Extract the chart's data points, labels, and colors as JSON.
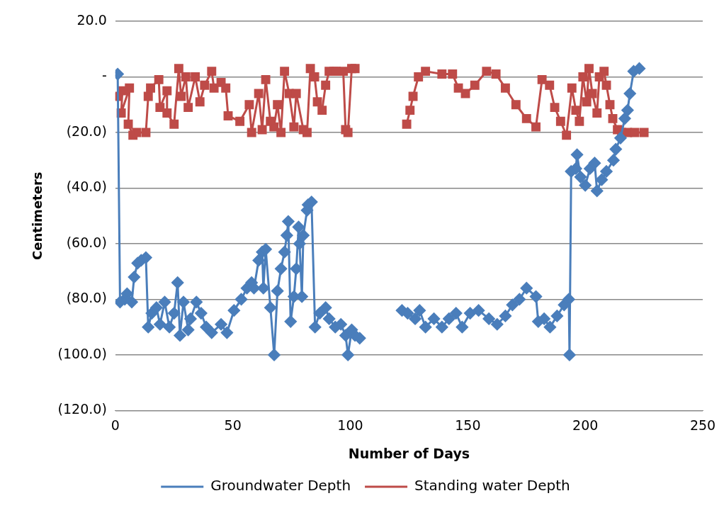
{
  "chart_data": {
    "type": "line",
    "xlabel": "Number of Days",
    "ylabel": "Centimeters",
    "xlim": [
      0,
      250
    ],
    "xticks": [
      0,
      50,
      100,
      150,
      200,
      250
    ],
    "ylim": [
      -120,
      20
    ],
    "yticks": [
      {
        "value": 20,
        "label": "20.0"
      },
      {
        "value": 0,
        "label": "-"
      },
      {
        "value": -20,
        "label": "(20.0)"
      },
      {
        "value": -40,
        "label": "(40.0)"
      },
      {
        "value": -60,
        "label": "(60.0)"
      },
      {
        "value": -80,
        "label": "(80.0)"
      },
      {
        "value": -100,
        "label": "(100.0)"
      },
      {
        "value": -120,
        "label": "(120.0)"
      }
    ],
    "grid": "y",
    "legend": "bottom",
    "line_style": "solid",
    "series": [
      {
        "name": "Groundwater Depth",
        "color": "#4a7ebb",
        "marker": "diamond",
        "x": [
          1,
          2,
          4,
          5,
          7,
          8,
          9.5,
          11,
          13,
          14,
          15.5,
          17.5,
          19,
          21,
          23,
          25,
          26.5,
          27.5,
          29,
          31,
          32,
          34.5,
          36.5,
          38.7,
          41,
          45,
          47.5,
          50.5,
          53.6,
          56,
          58,
          59,
          61,
          62.5,
          63,
          64,
          66,
          67.6,
          69,
          70.5,
          72,
          73,
          73.6,
          74.6,
          76,
          77,
          78,
          78.4,
          79.4,
          80,
          81.6,
          82,
          83.5,
          85,
          87,
          89.5,
          91,
          93.6,
          96,
          98,
          99,
          100.6,
          102,
          104,
          105,
          122,
          124.4,
          127.6,
          129.5,
          132,
          135.6,
          139,
          142,
          145,
          147.6,
          151,
          154.6,
          159,
          162.5,
          166,
          169,
          172,
          175,
          179,
          180,
          182.5,
          185,
          188,
          191,
          193,
          193.3,
          194,
          196,
          196.5,
          198,
          200,
          202,
          204,
          205,
          207,
          209,
          212,
          213,
          215,
          216.8,
          218,
          219,
          220.6,
          223
        ],
        "values": [
          1,
          -81,
          -80,
          -78,
          -81,
          -72,
          -67,
          -66,
          -65,
          -90,
          -85,
          -83,
          -89,
          -81,
          -90,
          -85,
          -74,
          -93,
          -81,
          -91,
          -87,
          -81,
          -85,
          -90,
          -92,
          -89,
          -92,
          -84,
          -80,
          -76,
          -74,
          -76,
          -66,
          -63,
          -76,
          -62,
          -83,
          -100,
          -77,
          -69,
          -63,
          -57,
          -52,
          -88,
          -79,
          -69,
          -54,
          -60,
          -79,
          -57,
          -48,
          -46,
          -45,
          -90,
          -85,
          -83,
          -87,
          -90,
          -89,
          -93,
          -100,
          -91,
          -93,
          -94,
          null,
          -84,
          -85,
          -87,
          -84,
          -90,
          -87,
          -90,
          -87,
          -85,
          -90,
          -85,
          -84,
          -87,
          -89,
          -86,
          -82,
          -80,
          -76,
          -79,
          -88,
          -87,
          -90,
          -86,
          -82,
          -80,
          -100,
          -34,
          -33,
          -28,
          -36,
          -39,
          -33,
          -31,
          -41,
          -37,
          -34,
          -30,
          -26,
          -22,
          -15,
          -12,
          -6,
          2,
          3
        ]
      },
      {
        "name": "Standing water Depth",
        "color": "#be4b48",
        "marker": "square",
        "x": [
          1,
          3,
          2.5,
          6,
          5.5,
          7.5,
          9,
          13,
          14,
          15,
          18.5,
          19,
          22,
          22,
          25,
          27,
          28,
          30,
          31,
          34,
          36,
          38,
          41,
          42,
          45,
          47,
          48,
          53,
          57,
          58,
          61,
          62.5,
          64,
          66,
          67.5,
          69,
          70.5,
          72,
          74,
          76,
          77,
          80,
          81.6,
          83,
          84.8,
          86,
          88,
          89.5,
          91,
          93,
          94,
          97,
          98,
          99,
          100.6,
          102,
          104,
          105,
          124,
          125.4,
          126.7,
          129,
          132,
          139,
          143.5,
          146,
          149,
          153,
          158,
          162,
          166,
          170.5,
          175,
          179,
          181.6,
          184.8,
          187,
          189.5,
          192,
          194.3,
          196,
          197.5,
          199,
          200.6,
          201.6,
          203,
          205,
          206,
          208,
          209,
          210.5,
          211.7,
          213.7,
          215.5,
          218,
          221,
          225
        ],
        "values": [
          -7,
          -5,
          -13,
          -4,
          -17,
          -21,
          -20,
          -20,
          -7,
          -4,
          -1,
          -11,
          -5,
          -13,
          -17,
          3,
          -7,
          0,
          -11,
          0,
          -9,
          -3,
          2,
          -4,
          -2,
          -4,
          -14,
          -16,
          -10,
          -20,
          -6,
          -19,
          -1,
          -16,
          -18,
          -10,
          -20,
          2,
          -6,
          -18,
          -6,
          -19,
          -20,
          3,
          0,
          -9,
          -12,
          -3,
          2,
          2,
          2,
          2,
          -19,
          -20,
          3,
          3,
          null,
          null,
          -17,
          -12,
          -7,
          0,
          2,
          1,
          1,
          -4,
          -6,
          -3,
          2,
          1,
          -4,
          -10,
          -15,
          -18,
          -1,
          -3,
          -11,
          -16,
          -21,
          -4,
          -12,
          -16,
          0,
          -9,
          3,
          -6,
          -13,
          0,
          2,
          -3,
          -10,
          -15,
          -19,
          -20,
          -20,
          -20,
          -20
        ]
      }
    ]
  }
}
